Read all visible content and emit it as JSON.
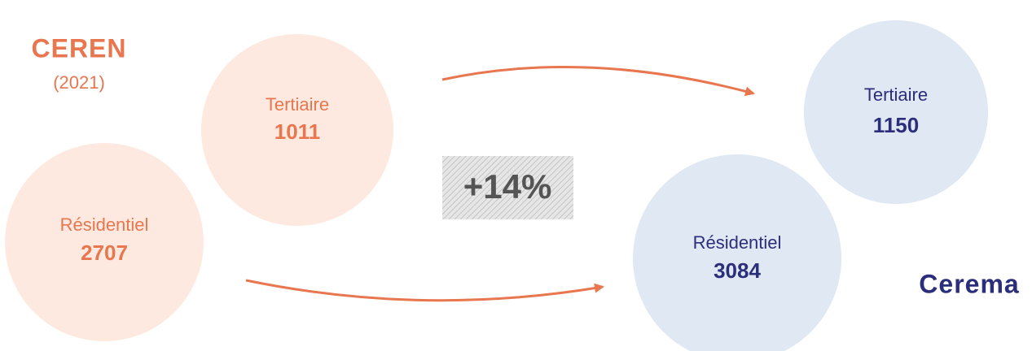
{
  "left": {
    "title": "CEREN",
    "subtitle": "(2021)"
  },
  "right": {
    "title": "Cerema"
  },
  "nodes": [
    {
      "label": "Tertiaire",
      "value": 1011
    },
    {
      "label": "Résidentiel",
      "value": 2707
    },
    {
      "label": "Tertiaire",
      "value": 1150
    },
    {
      "label": "Résidentiel",
      "value": 3084
    }
  ],
  "change": "+14%"
}
